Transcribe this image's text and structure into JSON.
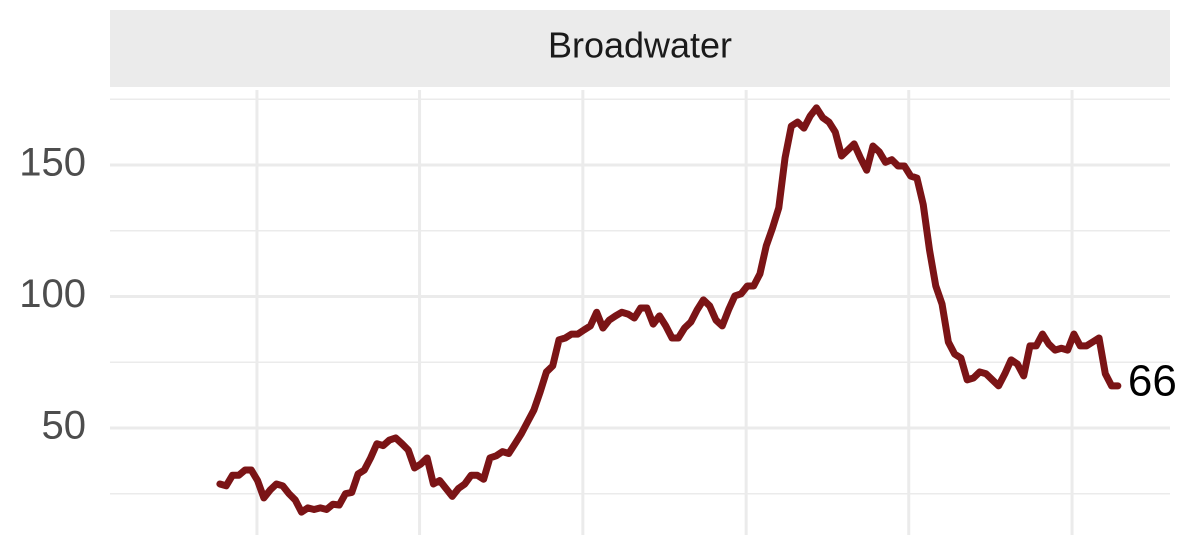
{
  "chart_data": {
    "type": "line",
    "title": "Broadwater",
    "color": "#7b1416",
    "values": [
      28.7,
      28,
      32,
      32,
      34,
      34,
      30,
      23.4,
      26.4,
      28.7,
      28,
      25,
      22.6,
      18,
      19.6,
      19,
      19.6,
      19,
      21,
      20.7,
      25,
      25.5,
      32.5,
      34,
      38.6,
      44,
      43.3,
      45.4,
      46.2,
      44,
      41.6,
      34.8,
      36.3,
      38.6,
      28.7,
      30,
      27,
      24,
      27,
      28.7,
      32,
      32,
      30.5,
      38.6,
      39.4,
      41,
      40.3,
      44,
      47.8,
      52.3,
      56.8,
      63.7,
      71.3,
      73.6,
      83.5,
      84.2,
      85.7,
      85.7,
      87.3,
      88.8,
      94,
      88,
      91,
      92.6,
      94,
      93.3,
      91.8,
      95.6,
      95.6,
      89.5,
      92.6,
      88.8,
      84.2,
      84.2,
      88,
      90.3,
      94.9,
      98.7,
      96.4,
      91,
      88.8,
      94.9,
      100.2,
      101,
      104,
      104,
      108.6,
      119.2,
      126,
      133.7,
      152.7,
      164.8,
      166.3,
      164,
      168.6,
      171.7,
      168,
      166.3,
      162.5,
      153.4,
      155.7,
      158,
      152.7,
      148,
      157.2,
      155,
      151,
      152,
      149.6,
      149.6,
      145.8,
      145,
      135,
      117.7,
      104,
      97.1,
      82.7,
      78.1,
      76.6,
      68.3,
      69,
      71.3,
      70.6,
      68.3,
      66,
      70.6,
      75.9,
      74.3,
      69.8,
      81.2,
      81.2,
      85.7,
      81.9,
      79.6,
      80.3,
      79.6,
      85.7,
      81.2,
      81.2,
      82.7,
      84.2,
      70.6,
      66,
      66
    ],
    "ylim": [
      9.3,
      178.5
    ],
    "yticks": [
      50,
      100,
      150
    ],
    "yminor": [
      25,
      75,
      125,
      175
    ],
    "xlim": [
      -17.5,
      151.3
    ],
    "xticks": [
      5.9,
      31.8,
      57.8,
      83.8,
      109.7,
      135.7
    ],
    "grid": true
  }
}
